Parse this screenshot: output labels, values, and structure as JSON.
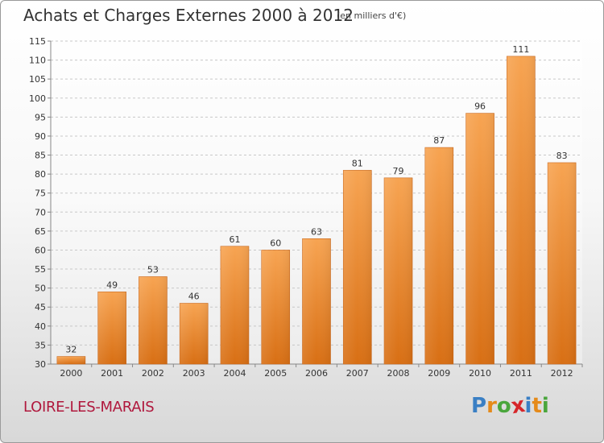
{
  "header": {
    "title": "Achats et Charges Externes 2000 à 2012",
    "subtitle": "(en milliers d'€)"
  },
  "footer": {
    "commune": "LOIRE-LES-MARAIS",
    "logo": {
      "letters": [
        "P",
        "r",
        "o",
        "x",
        "i",
        "t",
        "i"
      ],
      "colors": [
        "#3a7fc4",
        "#e58a1a",
        "#4aa63c",
        "#d6262a",
        "#3a7fc4",
        "#e58a1a",
        "#4aa63c"
      ]
    }
  },
  "chart_data": {
    "type": "bar",
    "title": "Achats et Charges Externes 2000 à 2012",
    "subtitle": "(en milliers d'€)",
    "categories": [
      "2000",
      "2001",
      "2002",
      "2003",
      "2004",
      "2005",
      "2006",
      "2007",
      "2008",
      "2009",
      "2010",
      "2011",
      "2012"
    ],
    "values": [
      32,
      49,
      53,
      46,
      61,
      60,
      63,
      81,
      79,
      87,
      96,
      111,
      83
    ],
    "ylim": [
      30,
      115
    ],
    "yticks": [
      30,
      35,
      40,
      45,
      50,
      55,
      60,
      65,
      70,
      75,
      80,
      85,
      90,
      95,
      100,
      105,
      110,
      115
    ],
    "grid": true,
    "bar_color": "#f08a2c"
  }
}
